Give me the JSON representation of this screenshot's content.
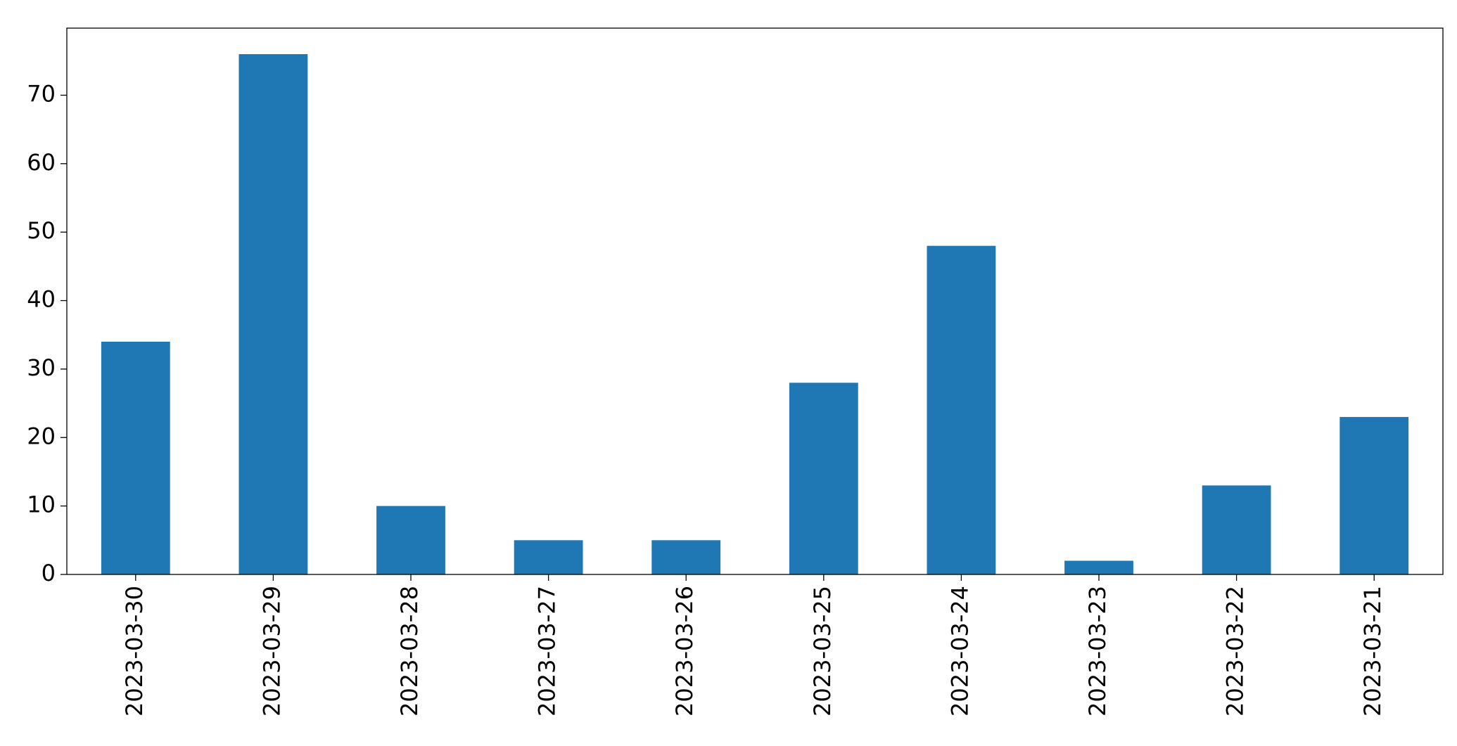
{
  "chart_data": {
    "type": "bar",
    "categories": [
      "2023-03-30",
      "2023-03-29",
      "2023-03-28",
      "2023-03-27",
      "2023-03-26",
      "2023-03-25",
      "2023-03-24",
      "2023-03-23",
      "2023-03-22",
      "2023-03-21"
    ],
    "values": [
      34,
      76,
      10,
      5,
      5,
      28,
      48,
      2,
      13,
      23
    ],
    "color": "#1f77b4",
    "ylim": [
      0,
      79.8
    ],
    "yticks": [
      0,
      10,
      20,
      30,
      40,
      50,
      60,
      70
    ],
    "grid": false
  }
}
